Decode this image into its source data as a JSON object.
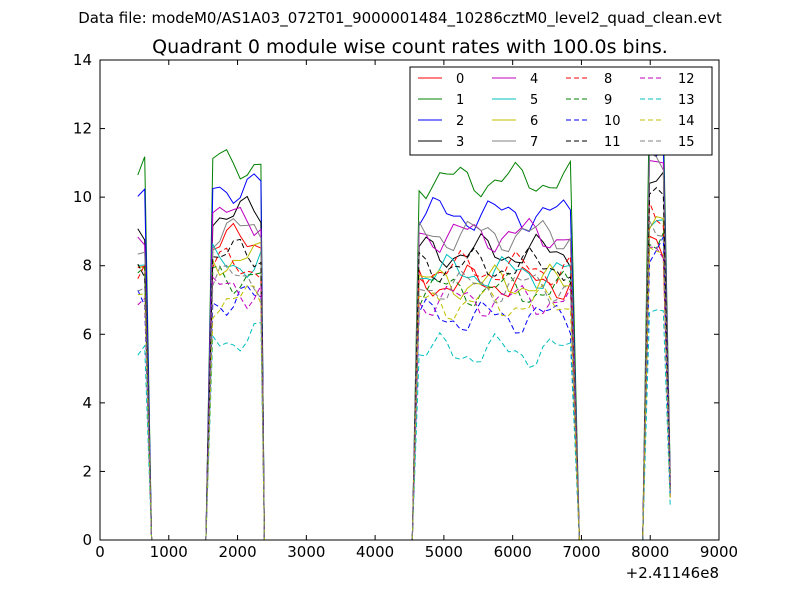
{
  "chart_data": {
    "type": "line",
    "suptitle": "Data file: modeM0/AS1A03_072T01_9000001484_10286cztM0_level2_quad_clean.evt",
    "title": "Quadrant 0 module wise count rates with 100.0s bins.",
    "xlabel": "",
    "ylabel": "",
    "x_offset_label": "+2.41146e8",
    "xlim": [
      0,
      9000
    ],
    "ylim": [
      0,
      14
    ],
    "xticks": [
      0,
      1000,
      2000,
      3000,
      4000,
      5000,
      6000,
      7000,
      8000,
      9000
    ],
    "yticks": [
      0,
      2,
      4,
      6,
      8,
      10,
      12,
      14
    ],
    "xtick_labels": [
      "0",
      "1000",
      "2000",
      "3000",
      "4000",
      "5000",
      "6000",
      "7000",
      "8000",
      "9000"
    ],
    "ytick_labels": [
      "0",
      "2",
      "4",
      "6",
      "8",
      "10",
      "12",
      "14"
    ],
    "grid": false,
    "legend_position": "top-right",
    "gti_segments": [
      {
        "start": 550,
        "end": 650
      },
      {
        "start": 1640,
        "end": 2290
      },
      {
        "start": 4640,
        "end": 6870
      },
      {
        "start": 7990,
        "end": 8190
      }
    ],
    "gap_level": 0,
    "series": [
      {
        "name": "0",
        "color": "#ff0000",
        "dash": "solid",
        "levels": [
          8.4,
          8.7,
          7.5,
          8.4
        ]
      },
      {
        "name": "1",
        "color": "#008000",
        "dash": "solid",
        "levels": [
          11.0,
          11.0,
          10.5,
          12.9
        ]
      },
      {
        "name": "2",
        "color": "#0000ff",
        "dash": "solid",
        "levels": [
          9.7,
          10.3,
          9.5,
          11.5
        ]
      },
      {
        "name": "3",
        "color": "#000000",
        "dash": "solid",
        "levels": [
          8.8,
          9.5,
          8.4,
          10.3
        ]
      },
      {
        "name": "4",
        "color": "#bf00bf",
        "dash": "solid",
        "levels": [
          9.0,
          9.4,
          8.9,
          11.0
        ]
      },
      {
        "name": "5",
        "color": "#00bfbf",
        "dash": "solid",
        "levels": [
          8.0,
          8.1,
          7.8,
          9.5
        ]
      },
      {
        "name": "6",
        "color": "#bfbf00",
        "dash": "solid",
        "levels": [
          7.8,
          8.2,
          7.5,
          9.2
        ]
      },
      {
        "name": "7",
        "color": "#808080",
        "dash": "solid",
        "levels": [
          8.6,
          9.0,
          8.9,
          10.8
        ]
      },
      {
        "name": "8",
        "color": "#ff0000",
        "dash": "dashed",
        "levels": [
          8.0,
          8.0,
          7.9,
          9.6
        ]
      },
      {
        "name": "9",
        "color": "#008000",
        "dash": "dashed",
        "levels": [
          7.5,
          7.7,
          7.3,
          9.0
        ]
      },
      {
        "name": "10",
        "color": "#0000ff",
        "dash": "dashed",
        "levels": [
          6.8,
          7.0,
          6.5,
          8.3
        ]
      },
      {
        "name": "11",
        "color": "#000000",
        "dash": "dashed",
        "levels": [
          8.2,
          8.3,
          8.0,
          9.9
        ]
      },
      {
        "name": "12",
        "color": "#bf00bf",
        "dash": "dashed",
        "levels": [
          7.2,
          7.3,
          7.0,
          8.6
        ]
      },
      {
        "name": "13",
        "color": "#00bfbf",
        "dash": "dashed",
        "levels": [
          5.3,
          5.9,
          5.5,
          6.8
        ]
      },
      {
        "name": "14",
        "color": "#bfbf00",
        "dash": "dashed",
        "levels": [
          7.1,
          7.0,
          6.9,
          8.2
        ]
      },
      {
        "name": "15",
        "color": "#808080",
        "dash": "dashed",
        "levels": [
          7.5,
          7.6,
          7.4,
          9.0
        ]
      }
    ]
  }
}
